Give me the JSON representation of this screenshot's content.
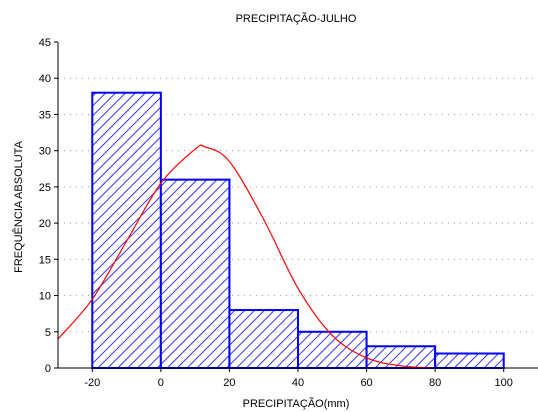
{
  "chart_data": {
    "type": "bar",
    "title": "PRECIPITAÇÃO-JULHO",
    "xlabel": "PRECIPITAÇÃO(mm)",
    "ylabel": "FREQUÊNCIA ABSOLUTA",
    "xlim": [
      -30,
      110
    ],
    "ylim": [
      0,
      45
    ],
    "x_ticks": [
      -20,
      0,
      20,
      40,
      60,
      80,
      100
    ],
    "y_ticks": [
      0,
      5,
      10,
      15,
      20,
      25,
      30,
      35,
      40,
      45
    ],
    "bins": [
      {
        "from": -20,
        "to": 0,
        "value": 38
      },
      {
        "from": 0,
        "to": 20,
        "value": 26
      },
      {
        "from": 20,
        "to": 40,
        "value": 8
      },
      {
        "from": 40,
        "to": 60,
        "value": 5
      },
      {
        "from": 60,
        "to": 80,
        "value": 3
      },
      {
        "from": 80,
        "to": 100,
        "value": 2
      }
    ],
    "fitted_curve": {
      "type": "normal",
      "x": [
        -30,
        -20,
        -10,
        0,
        10,
        13,
        20,
        30,
        40,
        50,
        60,
        70,
        80
      ],
      "y": [
        4,
        9.5,
        17.5,
        25.5,
        30.2,
        30.5,
        28.5,
        20.5,
        11,
        4.5,
        1.4,
        0.3,
        0
      ]
    },
    "grid": true,
    "legend": false,
    "colors": {
      "bar_stroke": "#0000ff",
      "hatch": "#0000ff",
      "curve": "#ff0000",
      "grid": "#9a9a9a",
      "axis": "#000000"
    }
  }
}
